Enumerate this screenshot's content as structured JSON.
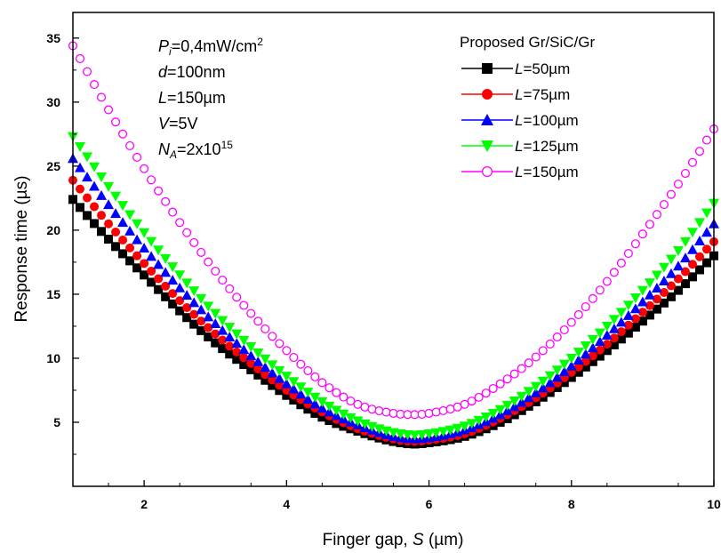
{
  "chart_data": {
    "type": "scatter",
    "xlabel": "Finger gap, S (µm)",
    "xlabel_parts": {
      "pre": "Finger gap, ",
      "var": "S",
      "post": " (µm)"
    },
    "ylabel": "Response time (µs)",
    "xlim": [
      1,
      10
    ],
    "ylim": [
      0,
      37
    ],
    "x_ticks": [
      2,
      4,
      6,
      8,
      10
    ],
    "y_ticks": [
      5,
      10,
      15,
      20,
      25,
      30,
      35
    ],
    "x_tick_labels": [
      "2",
      "4",
      "6",
      "8",
      "10"
    ],
    "y_tick_labels": [
      "5",
      "10",
      "15",
      "20",
      "25",
      "30",
      "35"
    ],
    "grid": false,
    "legend": {
      "title": "Proposed Gr/SiC/Gr",
      "placement": "top-right"
    },
    "annotations": [
      {
        "var": "P",
        "sub": "i",
        "text": "=0,4mW/cm",
        "sup": "2"
      },
      {
        "var": "d",
        "sub": "",
        "text": "=100nm",
        "sup": ""
      },
      {
        "var": "L",
        "sub": "",
        "text": "=150µm",
        "sup": ""
      },
      {
        "var": "V",
        "sub": "",
        "text": "=5V",
        "sup": ""
      },
      {
        "var": "N",
        "sub": "A",
        "text": "=2x10",
        "sup": "15"
      }
    ],
    "x": [
      1.0,
      1.5,
      2.0,
      2.5,
      3.0,
      3.5,
      4.0,
      4.5,
      5.0,
      5.5,
      5.8,
      6.0,
      6.5,
      7.0,
      7.5,
      8.0,
      8.5,
      9.0,
      9.5,
      10.0
    ],
    "series": [
      {
        "name": "L=50µm",
        "label_var": "L",
        "label_rest": "=50µm",
        "marker": "square",
        "color": "#000000",
        "filled": true,
        "values": [
          22.4,
          19.3,
          16.5,
          13.7,
          11.2,
          9.1,
          7.1,
          5.4,
          4.3,
          3.5,
          3.3,
          3.4,
          3.9,
          5.0,
          6.6,
          8.5,
          10.6,
          12.9,
          15.3,
          18.0
        ]
      },
      {
        "name": "L=75µm",
        "label_var": "L",
        "label_rest": "=75µm",
        "marker": "circle",
        "color": "#ff0000",
        "filled": true,
        "values": [
          23.9,
          20.5,
          17.4,
          14.5,
          11.9,
          9.6,
          7.5,
          5.8,
          4.5,
          3.7,
          3.5,
          3.6,
          4.1,
          5.3,
          6.9,
          8.9,
          11.1,
          13.6,
          16.2,
          19.1
        ]
      },
      {
        "name": "L=100µm",
        "label_var": "L",
        "label_rest": "=100µm",
        "marker": "triangle-up",
        "color": "#0000ff",
        "filled": true,
        "values": [
          25.6,
          22.0,
          18.6,
          15.5,
          12.7,
          10.2,
          8.0,
          6.1,
          4.8,
          3.9,
          3.7,
          3.8,
          4.4,
          5.6,
          7.3,
          9.4,
          11.8,
          14.4,
          17.2,
          20.5
        ]
      },
      {
        "name": "L=125µm",
        "label_var": "L",
        "label_rest": "=125µm",
        "marker": "triangle-down",
        "color": "#00ff00",
        "filled": true,
        "values": [
          27.3,
          23.4,
          19.8,
          16.5,
          13.5,
          10.9,
          8.6,
          6.6,
          5.1,
          4.2,
          4.0,
          4.1,
          4.7,
          6.0,
          7.8,
          10.0,
          12.5,
          15.3,
          18.4,
          22.1
        ]
      },
      {
        "name": "L=150µm",
        "label_var": "L",
        "label_rest": "=150µm",
        "marker": "circle-open",
        "color": "#ff00ff",
        "filled": false,
        "values": [
          34.4,
          29.4,
          24.8,
          20.6,
          16.8,
          13.5,
          10.6,
          8.1,
          6.4,
          5.7,
          5.6,
          5.7,
          6.4,
          8.0,
          10.1,
          12.8,
          16.0,
          19.7,
          23.6,
          27.9
        ]
      }
    ]
  }
}
